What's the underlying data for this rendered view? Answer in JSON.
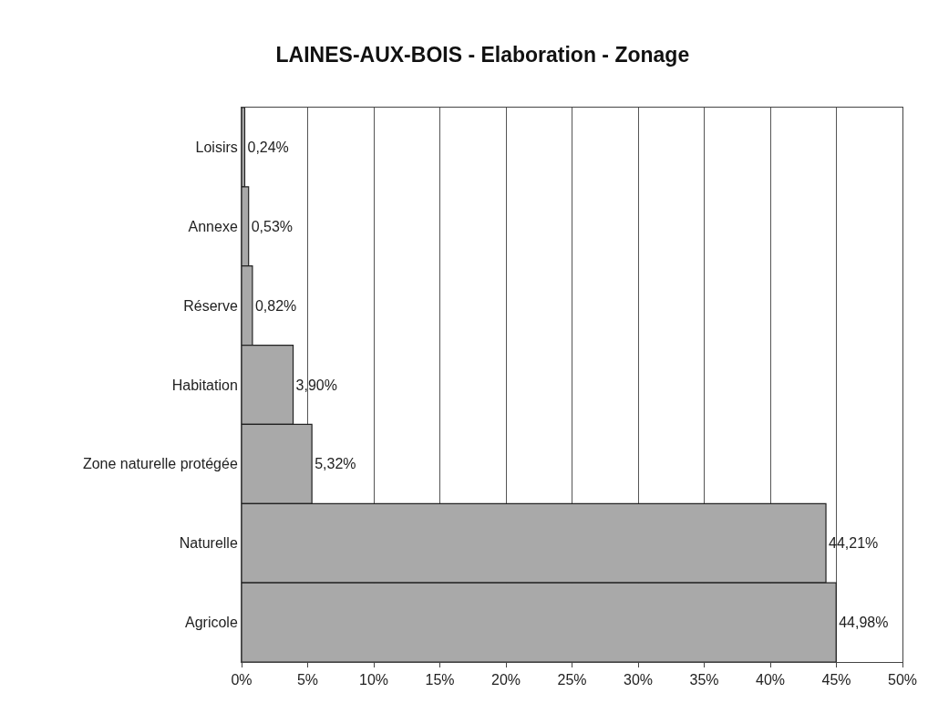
{
  "chart_data": {
    "type": "bar",
    "orientation": "horizontal",
    "title": "LAINES-AUX-BOIS - Elaboration - Zonage",
    "categories": [
      "Loisirs",
      "Annexe",
      "Réserve",
      "Habitation",
      "Zone naturelle protégée",
      "Naturelle",
      "Agricole"
    ],
    "values": [
      0.24,
      0.53,
      0.82,
      3.9,
      5.32,
      44.21,
      44.98
    ],
    "value_labels": [
      "0,24%",
      "0,53%",
      "0,82%",
      "3,90%",
      "5,32%",
      "44,21%",
      "44,98%"
    ],
    "color": "#a9a9a9",
    "xlim": [
      0,
      50
    ],
    "xticks": [
      {
        "value": 0,
        "label": "0%"
      },
      {
        "value": 5,
        "label": "5%"
      },
      {
        "value": 10,
        "label": "10%"
      },
      {
        "value": 15,
        "label": "15%"
      },
      {
        "value": 20,
        "label": "20%"
      },
      {
        "value": 25,
        "label": "25%"
      },
      {
        "value": 30,
        "label": "30%"
      },
      {
        "value": 35,
        "label": "35%"
      },
      {
        "value": 40,
        "label": "40%"
      },
      {
        "value": 45,
        "label": "45%"
      },
      {
        "value": 50,
        "label": "50%"
      }
    ],
    "grid": "x"
  }
}
